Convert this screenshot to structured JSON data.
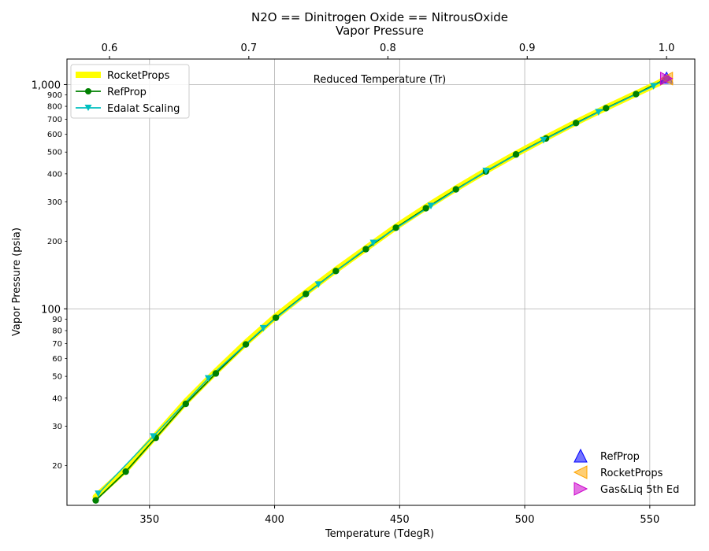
{
  "chart_data": {
    "type": "line",
    "title": "N2O == Dinitrogen Oxide == NitrousOxide",
    "subtitle": "Vapor Pressure",
    "xlabel": "Temperature (TdegR)",
    "ylabel": "Vapor Pressure (psia)",
    "top_axis_label": "Reduced Temperature (Tr)",
    "xlim": [
      317,
      568
    ],
    "ylim": [
      13.3,
      1300
    ],
    "yscale": "log",
    "grid": true,
    "legend_position": "top-left",
    "x_ticks": [
      "350",
      "400",
      "450",
      "500",
      "550"
    ],
    "x_tick_values": [
      350,
      400,
      450,
      500,
      550
    ],
    "top_ticks": [
      "0.6",
      "0.7",
      "0.8",
      "0.9",
      "1.0"
    ],
    "top_tick_values": [
      0.6,
      0.7,
      0.8,
      0.9,
      1.0
    ],
    "top_tick_temps": [
      334.0,
      389.7,
      445.3,
      501.0,
      556.7
    ],
    "y_major_ticks": [
      "100",
      "1,000"
    ],
    "y_major_values": [
      100,
      1000
    ],
    "y_minor_ticks": [
      "20",
      "30",
      "40",
      "50",
      "60",
      "70",
      "80",
      "90",
      "200",
      "300",
      "400",
      "500",
      "600",
      "700",
      "800",
      "900"
    ],
    "y_minor_values": [
      20,
      30,
      40,
      50,
      60,
      70,
      80,
      90,
      200,
      300,
      400,
      500,
      600,
      700,
      800,
      900
    ],
    "series": [
      {
        "name": "RocketProps",
        "color": "#ffff00",
        "x": [
          328.5,
          340.5,
          352.5,
          364.5,
          376.5,
          388.5,
          400.5,
          412.5,
          424.5,
          436.5,
          448.5,
          460.5,
          472.5,
          484.5,
          496.5,
          508.5,
          520.5,
          532.5,
          544.5,
          553.5,
          556.7
        ],
        "y": [
          14.5,
          19.2,
          27.2,
          38.5,
          52.5,
          70.5,
          92.5,
          118,
          149,
          186,
          232,
          284,
          344,
          413,
          491,
          579,
          678,
          788,
          911,
          1015,
          1064
        ]
      },
      {
        "name": "RefProp",
        "color": "#008000",
        "x": [
          328.5,
          340.5,
          352.5,
          364.5,
          376.5,
          388.5,
          400.5,
          412.5,
          424.5,
          436.5,
          448.5,
          460.5,
          472.5,
          484.5,
          496.5,
          508.5,
          520.5,
          532.5,
          544.5,
          556.7
        ],
        "y": [
          14.0,
          18.8,
          26.6,
          37.7,
          51.5,
          69.4,
          91.3,
          116.5,
          147.5,
          184.5,
          230,
          281,
          341,
          410,
          488,
          575,
          674,
          785,
          907,
          1064
        ]
      },
      {
        "name": "Edalat Scaling",
        "color": "#00bfbf",
        "x": [
          329.5,
          351.5,
          373.5,
          395.5,
          417.5,
          439.5,
          462.5,
          484.5,
          507.5,
          529.5,
          551.5,
          556.7
        ],
        "y": [
          15.0,
          27.0,
          49.0,
          82.0,
          128.5,
          197,
          288,
          412,
          566,
          754,
          985,
          1064
        ]
      }
    ],
    "critical_points": [
      {
        "name": "RefProp",
        "color": "#0000ff",
        "marker": "triangle-up",
        "x": 556.7,
        "y": 1064
      },
      {
        "name": "RocketProps",
        "color": "#ffa500",
        "marker": "triangle-left",
        "x": 556.9,
        "y": 1064
      },
      {
        "name": "Gas&Liq 5th Ed",
        "color": "#cc00cc",
        "marker": "triangle-right",
        "x": 556.5,
        "y": 1064
      }
    ]
  }
}
